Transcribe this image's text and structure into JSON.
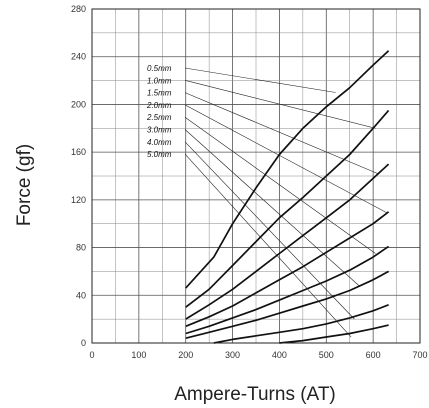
{
  "chart_data": {
    "type": "line",
    "title": "",
    "xlabel": "Ampere-Turns (AT)",
    "ylabel": "Force (gf)",
    "xlim": [
      0,
      700
    ],
    "ylim": [
      0,
      280
    ],
    "xticks": [
      0,
      100,
      200,
      300,
      400,
      500,
      600,
      700
    ],
    "yticks": [
      0,
      40,
      80,
      120,
      160,
      200,
      240,
      280
    ],
    "grid": true,
    "legend": "leader-line labels in upper-left area",
    "series": [
      {
        "name": "0.5mm",
        "x": [
          200,
          260,
          300,
          350,
          400,
          450,
          500,
          550,
          600,
          633
        ],
        "y": [
          46,
          72,
          100,
          130,
          158,
          180,
          198,
          214,
          233,
          245
        ]
      },
      {
        "name": "1.0mm",
        "x": [
          200,
          250,
          300,
          350,
          400,
          450,
          500,
          550,
          600,
          633
        ],
        "y": [
          30,
          45,
          65,
          85,
          105,
          122,
          140,
          158,
          180,
          195
        ]
      },
      {
        "name": "1.5mm",
        "x": [
          200,
          250,
          300,
          350,
          400,
          450,
          500,
          550,
          600,
          633
        ],
        "y": [
          20,
          32,
          45,
          60,
          75,
          90,
          105,
          120,
          138,
          150
        ]
      },
      {
        "name": "2.0mm",
        "x": [
          200,
          250,
          300,
          350,
          400,
          450,
          500,
          550,
          600,
          633
        ],
        "y": [
          14,
          22,
          31,
          42,
          53,
          64,
          76,
          88,
          100,
          110
        ]
      },
      {
        "name": "2.5mm",
        "x": [
          200,
          250,
          300,
          350,
          400,
          450,
          500,
          550,
          600,
          633
        ],
        "y": [
          8,
          14,
          21,
          28,
          36,
          44,
          52,
          61,
          72,
          81
        ]
      },
      {
        "name": "3.0mm",
        "x": [
          200,
          250,
          300,
          350,
          400,
          450,
          500,
          550,
          600,
          633
        ],
        "y": [
          4,
          9,
          14,
          19,
          25,
          31,
          37,
          44,
          53,
          60
        ]
      },
      {
        "name": "4.0mm",
        "x": [
          260,
          300,
          350,
          400,
          450,
          500,
          550,
          600,
          633
        ],
        "y": [
          0,
          3,
          6,
          9,
          12,
          16,
          21,
          27,
          32
        ]
      },
      {
        "name": "5.0mm",
        "x": [
          400,
          450,
          500,
          550,
          600,
          633
        ],
        "y": [
          0,
          2,
          5,
          8,
          12,
          15
        ]
      }
    ],
    "leader_targets": [
      {
        "x": 520,
        "y": 210
      },
      {
        "x": 605,
        "y": 180
      },
      {
        "x": 610,
        "y": 142
      },
      {
        "x": 630,
        "y": 109
      },
      {
        "x": 605,
        "y": 75
      },
      {
        "x": 570,
        "y": 48
      },
      {
        "x": 560,
        "y": 20
      },
      {
        "x": 553,
        "y": 5
      }
    ]
  }
}
